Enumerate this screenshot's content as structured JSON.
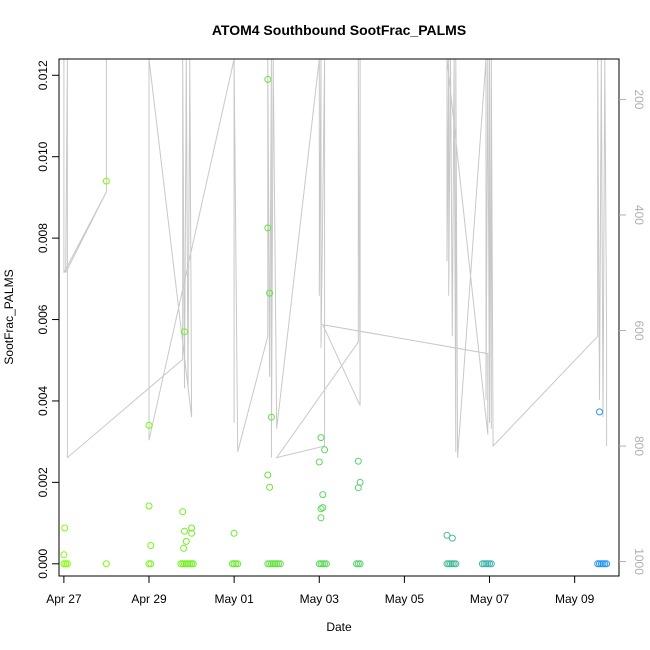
{
  "chart_data": {
    "type": "scatter",
    "title": "ATOM4 Southbound SootFrac_PALMS",
    "xlabel": "Date",
    "ylabel": "SootFrac_PALMS",
    "xlim": [
      "2017-04-26T21:15",
      "2017-05-10T01:00"
    ],
    "ylim": [
      -0.0003,
      0.0124
    ],
    "x_ticks": [
      {
        "date": "2017-04-27",
        "label": "Apr 27"
      },
      {
        "date": "2017-04-29",
        "label": "Apr 29"
      },
      {
        "date": "2017-05-01",
        "label": "May 01"
      },
      {
        "date": "2017-05-03",
        "label": "May 03"
      },
      {
        "date": "2017-05-05",
        "label": "May 05"
      },
      {
        "date": "2017-05-07",
        "label": "May 07"
      },
      {
        "date": "2017-05-09",
        "label": "May 09"
      }
    ],
    "y_ticks": [
      "0.000",
      "0.002",
      "0.004",
      "0.006",
      "0.008",
      "0.010",
      "0.012"
    ],
    "y_right": {
      "ylim": [
        1025,
        130
      ],
      "reversed": true,
      "ticks": [
        200,
        400,
        600,
        800,
        1000
      ],
      "color": "#b0b0b0"
    },
    "grid": false,
    "legend": "none",
    "scatter_series": {
      "marker": "open-circle",
      "color_by_time_from": "#7fff00",
      "color_by_time_to": "#1e90ff",
      "points": [
        [
          "2017-04-27T00:00",
          0.0
        ],
        [
          "2017-04-27T01:00",
          0.0
        ],
        [
          "2017-04-27T02:00",
          0.0
        ],
        [
          "2017-04-27T00:00",
          0.00022
        ],
        [
          "2017-04-27T00:30",
          0.00088
        ],
        [
          "2017-04-28T00:00",
          0.0094
        ],
        [
          "2017-04-28T00:00",
          0.0
        ],
        [
          "2017-04-29T00:00",
          0.0034
        ],
        [
          "2017-04-29T00:00",
          0.00142
        ],
        [
          "2017-04-29T01:00",
          0.00045
        ],
        [
          "2017-04-29T00:00",
          0.0
        ],
        [
          "2017-04-29T01:00",
          0.0
        ],
        [
          "2017-04-29T19:00",
          0.0
        ],
        [
          "2017-04-29T20:00",
          0.0
        ],
        [
          "2017-04-29T21:00",
          0.0
        ],
        [
          "2017-04-29T22:00",
          0.0
        ],
        [
          "2017-04-29T23:00",
          0.0
        ],
        [
          "2017-04-30T00:00",
          0.0
        ],
        [
          "2017-04-30T01:00",
          0.0
        ],
        [
          "2017-04-29T18:00",
          0.0
        ],
        [
          "2017-04-29T20:00",
          0.0057
        ],
        [
          "2017-04-29T19:00",
          0.00128
        ],
        [
          "2017-04-29T20:00",
          0.0008
        ],
        [
          "2017-04-29T21:00",
          0.00055
        ],
        [
          "2017-04-29T19:30",
          0.00038
        ],
        [
          "2017-04-30T00:00",
          0.00088
        ],
        [
          "2017-04-30T00:00",
          0.00075
        ],
        [
          "2017-04-30T23:00",
          0.0
        ],
        [
          "2017-05-01T00:00",
          0.0
        ],
        [
          "2017-05-01T01:00",
          0.0
        ],
        [
          "2017-05-01T02:00",
          0.0
        ],
        [
          "2017-05-01T00:00",
          0.00075
        ],
        [
          "2017-05-01T19:00",
          0.0119
        ],
        [
          "2017-05-01T19:00",
          0.00825
        ],
        [
          "2017-05-01T20:00",
          0.00665
        ],
        [
          "2017-05-01T21:00",
          0.0036
        ],
        [
          "2017-05-01T19:00",
          0.00218
        ],
        [
          "2017-05-01T20:00",
          0.00188
        ],
        [
          "2017-05-01T19:00",
          0.0
        ],
        [
          "2017-05-01T20:00",
          0.0
        ],
        [
          "2017-05-01T21:00",
          0.0
        ],
        [
          "2017-05-01T22:00",
          0.0
        ],
        [
          "2017-05-01T23:00",
          0.0
        ],
        [
          "2017-05-02T00:00",
          0.0
        ],
        [
          "2017-05-02T01:00",
          0.0
        ],
        [
          "2017-05-02T02:00",
          0.0
        ],
        [
          "2017-05-03T01:00",
          0.0031
        ],
        [
          "2017-05-03T03:00",
          0.0028
        ],
        [
          "2017-05-03T00:00",
          0.0025
        ],
        [
          "2017-05-03T02:00",
          0.0017
        ],
        [
          "2017-05-03T01:00",
          0.00135
        ],
        [
          "2017-05-03T02:00",
          0.00138
        ],
        [
          "2017-05-03T01:00",
          0.00113
        ],
        [
          "2017-05-03T00:00",
          0.0
        ],
        [
          "2017-05-03T01:00",
          0.0
        ],
        [
          "2017-05-03T02:00",
          0.0
        ],
        [
          "2017-05-03T03:00",
          0.0
        ],
        [
          "2017-05-03T04:00",
          0.0
        ],
        [
          "2017-05-03T22:00",
          0.00252
        ],
        [
          "2017-05-03T23:00",
          0.002
        ],
        [
          "2017-05-03T22:00",
          0.00187
        ],
        [
          "2017-05-03T21:00",
          0.0
        ],
        [
          "2017-05-03T22:00",
          0.0
        ],
        [
          "2017-05-03T23:00",
          0.0
        ],
        [
          "2017-05-06T00:00",
          0.0007
        ],
        [
          "2017-05-06T03:00",
          0.00063
        ],
        [
          "2017-05-06T00:00",
          0.0
        ],
        [
          "2017-05-06T01:00",
          0.0
        ],
        [
          "2017-05-06T02:00",
          0.0
        ],
        [
          "2017-05-06T03:00",
          0.0
        ],
        [
          "2017-05-06T04:00",
          0.0
        ],
        [
          "2017-05-06T05:00",
          0.0
        ],
        [
          "2017-05-06T20:00",
          0.0
        ],
        [
          "2017-05-06T21:00",
          0.0
        ],
        [
          "2017-05-06T22:00",
          0.0
        ],
        [
          "2017-05-06T23:00",
          0.0
        ],
        [
          "2017-05-07T00:00",
          0.0
        ],
        [
          "2017-05-07T01:00",
          0.0
        ],
        [
          "2017-05-09T13:00",
          0.0
        ],
        [
          "2017-05-09T14:00",
          0.0
        ],
        [
          "2017-05-09T15:00",
          0.0
        ],
        [
          "2017-05-09T16:00",
          0.0
        ],
        [
          "2017-05-09T17:00",
          0.0
        ],
        [
          "2017-05-09T18:00",
          0.0
        ],
        [
          "2017-05-09T14:00",
          0.00373
        ]
      ]
    },
    "pressure_series": {
      "color": "#c8c8c8",
      "units": "right-axis",
      "points": [
        [
          "2017-04-26T23:00",
          130
        ],
        [
          "2017-04-27T00:00",
          130
        ],
        [
          "2017-04-27T00:00",
          500
        ],
        [
          "2017-04-28T00:00",
          360
        ],
        [
          "2017-04-28T00:00",
          130
        ],
        [
          "2017-04-28T00:00",
          360
        ],
        [
          "2017-04-27T01:00",
          500
        ],
        [
          "2017-04-27T02:00",
          130
        ],
        [
          "2017-04-27T02:00",
          820
        ],
        [
          "2017-04-29T19:00",
          650
        ],
        [
          "2017-04-29T19:00",
          130
        ],
        [
          "2017-04-29T20:00",
          700
        ],
        [
          "2017-04-29T21:00",
          130
        ],
        [
          "2017-04-29T22:00",
          700
        ],
        [
          "2017-04-29T23:00",
          130
        ],
        [
          "2017-04-30T00:00",
          750
        ],
        [
          "2017-04-29T00:00",
          130
        ],
        [
          "2017-04-29T00:00",
          790
        ],
        [
          "2017-05-01T00:00",
          130
        ],
        [
          "2017-05-01T00:00",
          760
        ],
        [
          "2017-05-01T00:00",
          130
        ],
        [
          "2017-05-01T02:00",
          810
        ],
        [
          "2017-05-01T19:00",
          610
        ],
        [
          "2017-05-01T19:00",
          130
        ],
        [
          "2017-05-01T20:00",
          680
        ],
        [
          "2017-05-01T21:00",
          130
        ],
        [
          "2017-05-01T21:00",
          740
        ],
        [
          "2017-05-01T21:00",
          820
        ],
        [
          "2017-05-01T22:00",
          130
        ],
        [
          "2017-05-02T00:00",
          770
        ],
        [
          "2017-05-03T00:00",
          130
        ],
        [
          "2017-05-03T00:00",
          540
        ],
        [
          "2017-05-03T01:00",
          130
        ],
        [
          "2017-05-03T01:00",
          630
        ],
        [
          "2017-05-03T03:00",
          130
        ],
        [
          "2017-05-03T03:00",
          800
        ],
        [
          "2017-05-02T00:00",
          820
        ],
        [
          "2017-05-03T22:00",
          620
        ],
        [
          "2017-05-03T22:00",
          130
        ],
        [
          "2017-05-03T23:00",
          690
        ],
        [
          "2017-05-03T23:00",
          130
        ],
        [
          "2017-05-03T23:00",
          730
        ],
        [
          "2017-05-03T02:00",
          590
        ],
        [
          "2017-05-06T23:00",
          640
        ],
        [
          "2017-05-06T23:00",
          780
        ],
        [
          "2017-05-06T00:00",
          130
        ],
        [
          "2017-05-06T00:00",
          480
        ],
        [
          "2017-05-06T01:00",
          130
        ],
        [
          "2017-05-06T01:00",
          540
        ],
        [
          "2017-05-06T02:00",
          130
        ],
        [
          "2017-05-06T03:00",
          610
        ],
        [
          "2017-05-06T04:00",
          130
        ],
        [
          "2017-05-06T05:00",
          810
        ],
        [
          "2017-05-06T05:00",
          130
        ],
        [
          "2017-05-06T06:00",
          820
        ],
        [
          "2017-05-06T22:00",
          130
        ],
        [
          "2017-05-06T22:00",
          720
        ],
        [
          "2017-05-06T23:00",
          130
        ],
        [
          "2017-05-07T00:00",
          760
        ],
        [
          "2017-05-07T00:00",
          130
        ],
        [
          "2017-05-07T01:00",
          770
        ],
        [
          "2017-05-07T01:00",
          130
        ],
        [
          "2017-05-07T02:00",
          800
        ],
        [
          "2017-05-09T13:00",
          610
        ],
        [
          "2017-05-09T13:00",
          130
        ],
        [
          "2017-05-09T14:00",
          720
        ],
        [
          "2017-05-09T15:00",
          130
        ],
        [
          "2017-05-09T16:00",
          750
        ],
        [
          "2017-05-09T17:00",
          130
        ],
        [
          "2017-05-09T18:00",
          600
        ],
        [
          "2017-05-09T18:00",
          800
        ]
      ]
    }
  }
}
